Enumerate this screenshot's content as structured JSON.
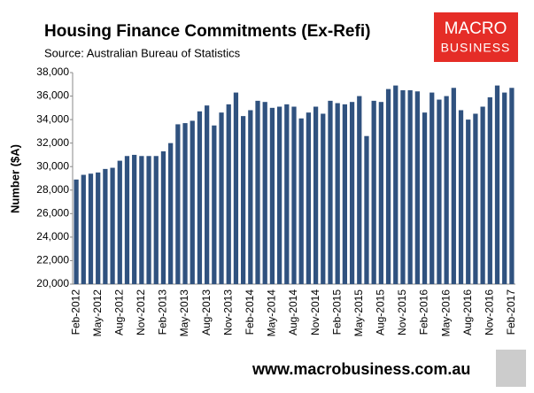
{
  "chart_data": {
    "type": "bar",
    "title": "Housing  Finance Commitments (Ex-Refi)",
    "subtitle": "Source: Australian Bureau of Statistics",
    "y_label": "Number ($A)",
    "footer": "www.macrobusiness.com.au",
    "logo": {
      "top": "MACRO",
      "bottom": "BUSINESS"
    },
    "color": "#30527f",
    "grid": false,
    "ylim": [
      20000,
      38000
    ],
    "yticks": [
      {
        "value": 20000,
        "label": "20,000"
      },
      {
        "value": 22000,
        "label": "22,000"
      },
      {
        "value": 24000,
        "label": "24,000"
      },
      {
        "value": 26000,
        "label": "26,000"
      },
      {
        "value": 28000,
        "label": "28,000"
      },
      {
        "value": 30000,
        "label": "30,000"
      },
      {
        "value": 32000,
        "label": "32,000"
      },
      {
        "value": 34000,
        "label": "34,000"
      },
      {
        "value": 36000,
        "label": "36,000"
      },
      {
        "value": 38000,
        "label": "38,000"
      }
    ],
    "categories": [
      "Feb-2012",
      null,
      null,
      "May-2012",
      null,
      null,
      "Aug-2012",
      null,
      null,
      "Nov-2012",
      null,
      null,
      "Feb-2013",
      null,
      null,
      "May-2013",
      null,
      null,
      "Aug-2013",
      null,
      null,
      "Nov-2013",
      null,
      null,
      "Feb-2014",
      null,
      null,
      "May-2014",
      null,
      null,
      "Aug-2014",
      null,
      null,
      "Nov-2014",
      null,
      null,
      "Feb-2015",
      null,
      null,
      "May-2015",
      null,
      null,
      "Aug-2015",
      null,
      null,
      "Nov-2015",
      null,
      null,
      "Feb-2016",
      null,
      null,
      "May-2016",
      null,
      null,
      "Aug-2016",
      null,
      null,
      "Nov-2016",
      null,
      null,
      "Feb-2017"
    ],
    "values": [
      28900,
      29300,
      29400,
      29500,
      29800,
      29900,
      30500,
      30900,
      31000,
      30900,
      30900,
      30900,
      31300,
      32000,
      33600,
      33700,
      33900,
      34700,
      35200,
      33500,
      34600,
      35300,
      36300,
      34300,
      34800,
      35600,
      35500,
      35000,
      35100,
      35300,
      35100,
      34100,
      34600,
      35100,
      34500,
      35600,
      35400,
      35300,
      35500,
      36000,
      32600,
      35600,
      35500,
      36600,
      36900,
      36500,
      36500,
      36400,
      34600,
      36300,
      35700,
      36000,
      36700,
      34800,
      34000,
      34500,
      35100,
      35900,
      36900,
      36300,
      36700
    ]
  }
}
